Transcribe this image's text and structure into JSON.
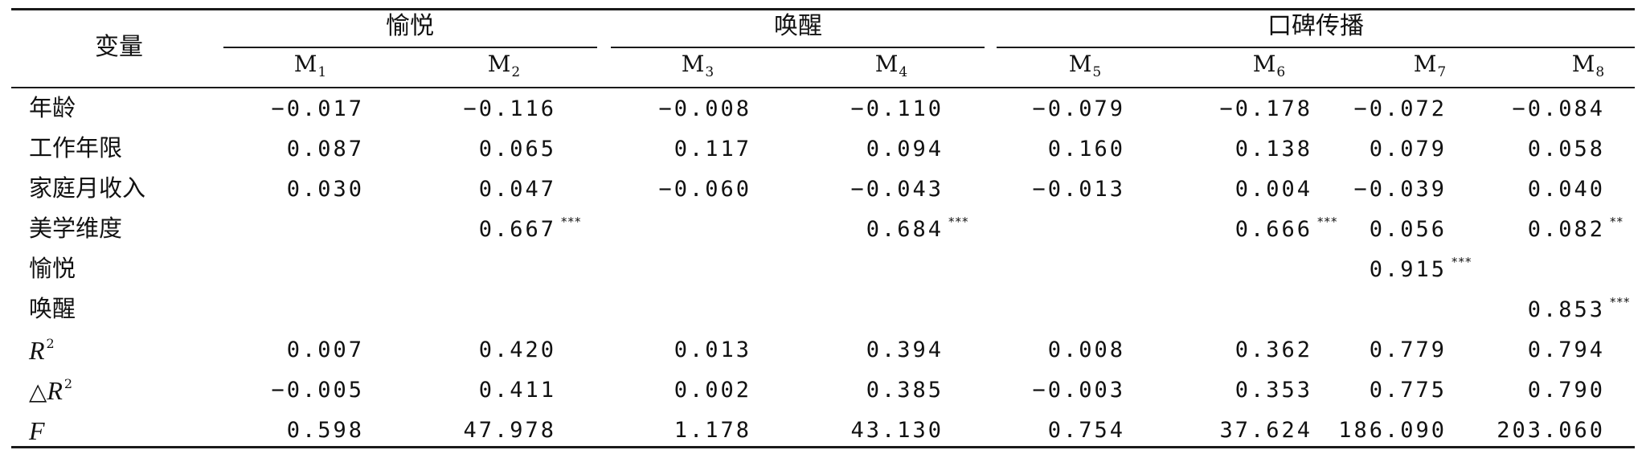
{
  "table": {
    "corner_label": "变量",
    "groups": [
      "愉悦",
      "唤醒",
      "口碑传播"
    ],
    "models": [
      {
        "base": "M",
        "sub": "1"
      },
      {
        "base": "M",
        "sub": "2"
      },
      {
        "base": "M",
        "sub": "3"
      },
      {
        "base": "M",
        "sub": "4"
      },
      {
        "base": "M",
        "sub": "5"
      },
      {
        "base": "M",
        "sub": "6"
      },
      {
        "base": "M",
        "sub": "7"
      },
      {
        "base": "M",
        "sub": "8"
      }
    ],
    "rows": [
      {
        "label": "年龄",
        "cells": [
          {
            "v": "−0.017"
          },
          {
            "v": "−0.116"
          },
          {
            "v": "−0.008"
          },
          {
            "v": "−0.110"
          },
          {
            "v": "−0.079"
          },
          {
            "v": "−0.178"
          },
          {
            "v": "−0.072"
          },
          {
            "v": "−0.084"
          }
        ]
      },
      {
        "label": "工作年限",
        "cells": [
          {
            "v": "0.087"
          },
          {
            "v": "0.065"
          },
          {
            "v": "0.117"
          },
          {
            "v": "0.094"
          },
          {
            "v": "0.160"
          },
          {
            "v": "0.138"
          },
          {
            "v": "0.079"
          },
          {
            "v": "0.058"
          }
        ]
      },
      {
        "label": "家庭月收入",
        "cells": [
          {
            "v": "0.030"
          },
          {
            "v": "0.047"
          },
          {
            "v": "−0.060"
          },
          {
            "v": "−0.043"
          },
          {
            "v": "−0.013"
          },
          {
            "v": "0.004"
          },
          {
            "v": "−0.039"
          },
          {
            "v": "0.040"
          }
        ]
      },
      {
        "label": "美学维度",
        "cells": [
          {
            "v": ""
          },
          {
            "v": "0.667",
            "s": "***"
          },
          {
            "v": ""
          },
          {
            "v": "0.684",
            "s": "***"
          },
          {
            "v": ""
          },
          {
            "v": "0.666",
            "s": "***"
          },
          {
            "v": "0.056"
          },
          {
            "v": "0.082",
            "s": "**"
          }
        ]
      },
      {
        "label": "愉悦",
        "cells": [
          {
            "v": ""
          },
          {
            "v": ""
          },
          {
            "v": ""
          },
          {
            "v": ""
          },
          {
            "v": ""
          },
          {
            "v": ""
          },
          {
            "v": "0.915",
            "s": "***"
          },
          {
            "v": ""
          }
        ]
      },
      {
        "label": "唤醒",
        "cells": [
          {
            "v": ""
          },
          {
            "v": ""
          },
          {
            "v": ""
          },
          {
            "v": ""
          },
          {
            "v": ""
          },
          {
            "v": ""
          },
          {
            "v": ""
          },
          {
            "v": "0.853",
            "s": "***"
          }
        ]
      },
      {
        "label": "R",
        "label_sup": "2",
        "italic": true,
        "cells": [
          {
            "v": "0.007"
          },
          {
            "v": "0.420"
          },
          {
            "v": "0.013"
          },
          {
            "v": "0.394"
          },
          {
            "v": "0.008"
          },
          {
            "v": "0.362"
          },
          {
            "v": "0.779"
          },
          {
            "v": "0.794"
          }
        ]
      },
      {
        "label_prefix": "△",
        "label": "R",
        "label_sup": "2",
        "italic": true,
        "cells": [
          {
            "v": "−0.005"
          },
          {
            "v": "0.411"
          },
          {
            "v": "0.002"
          },
          {
            "v": "0.385"
          },
          {
            "v": "−0.003"
          },
          {
            "v": "0.353"
          },
          {
            "v": "0.775"
          },
          {
            "v": "0.790"
          }
        ]
      },
      {
        "label": "F",
        "italic": true,
        "cells": [
          {
            "v": "0.598"
          },
          {
            "v": "47.978"
          },
          {
            "v": "1.178"
          },
          {
            "v": "43.130"
          },
          {
            "v": "0.754"
          },
          {
            "v": "37.624"
          },
          {
            "v": "186.090"
          },
          {
            "v": "203.060"
          }
        ]
      }
    ]
  }
}
